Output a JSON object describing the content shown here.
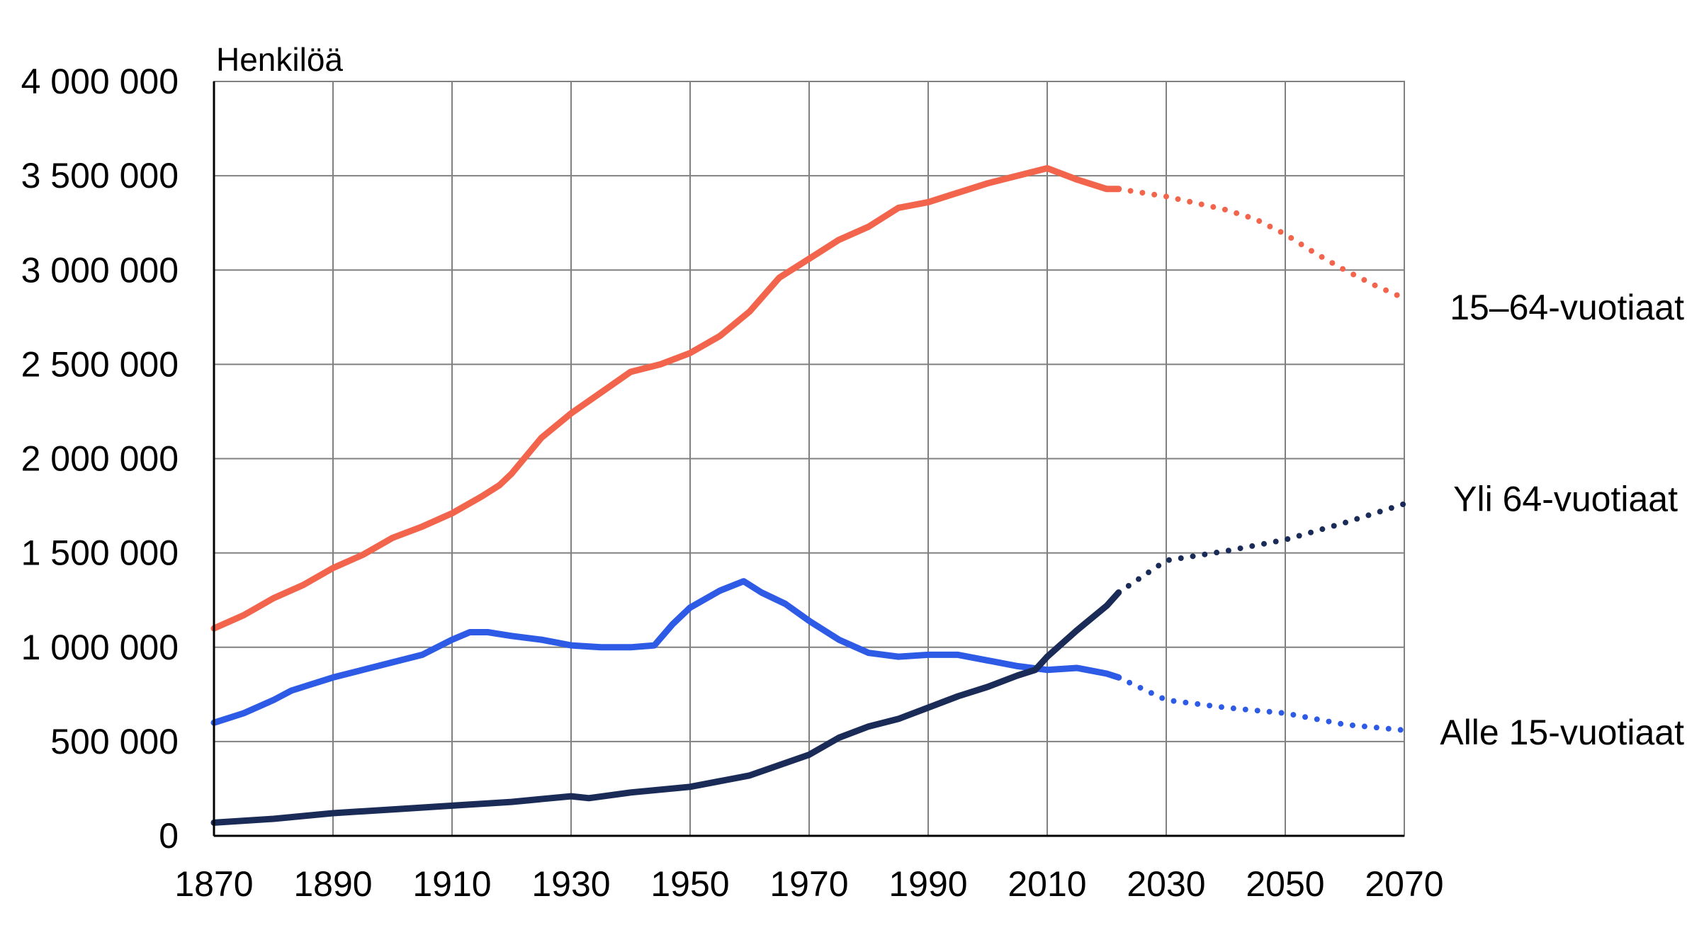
{
  "chart_data": {
    "type": "line",
    "title": "",
    "ylabel": "Henkilöä",
    "xlabel": "",
    "xlim": [
      1870,
      2070
    ],
    "ylim": [
      0,
      4000000
    ],
    "x_ticks": [
      1870,
      1890,
      1910,
      1930,
      1950,
      1970,
      1990,
      2010,
      2030,
      2050,
      2070
    ],
    "x_tick_labels": [
      "1870",
      "1890",
      "1910",
      "1930",
      "1950",
      "1970",
      "1990",
      "2010",
      "2030",
      "2050",
      "2070"
    ],
    "y_ticks": [
      0,
      500000,
      1000000,
      1500000,
      2000000,
      2500000,
      3000000,
      3500000,
      4000000
    ],
    "y_tick_labels": [
      "0",
      "500 000",
      "1 000 000",
      "1 500 000",
      "2 000 000",
      "2 500 000",
      "3 000 000",
      "3 500 000",
      "4 000 000"
    ],
    "grid": true,
    "legend": "labels at right end of each line",
    "series": [
      {
        "name": "15–64-vuotiaat",
        "color": "#F2654C",
        "observed": {
          "x": [
            1870,
            1875,
            1880,
            1885,
            1890,
            1895,
            1900,
            1905,
            1910,
            1915,
            1918,
            1920,
            1925,
            1930,
            1935,
            1940,
            1945,
            1950,
            1955,
            1960,
            1965,
            1970,
            1975,
            1980,
            1985,
            1990,
            1995,
            2000,
            2005,
            2010,
            2015,
            2020,
            2022
          ],
          "y": [
            1100000,
            1170000,
            1260000,
            1330000,
            1420000,
            1490000,
            1580000,
            1640000,
            1710000,
            1800000,
            1860000,
            1920000,
            2110000,
            2240000,
            2350000,
            2460000,
            2500000,
            2560000,
            2650000,
            2780000,
            2960000,
            3060000,
            3160000,
            3230000,
            3330000,
            3360000,
            3410000,
            3460000,
            3500000,
            3540000,
            3480000,
            3430000,
            3430000
          ]
        },
        "projection": {
          "x": [
            2022,
            2030,
            2040,
            2045,
            2050,
            2055,
            2060,
            2065,
            2070
          ],
          "y": [
            3430000,
            3390000,
            3320000,
            3270000,
            3190000,
            3090000,
            3000000,
            2920000,
            2850000
          ]
        }
      },
      {
        "name": "Alle 15-vuotiaat",
        "color": "#2E5BE6",
        "observed": {
          "x": [
            1870,
            1875,
            1880,
            1883,
            1886,
            1890,
            1895,
            1900,
            1905,
            1910,
            1913,
            1916,
            1920,
            1925,
            1930,
            1935,
            1940,
            1944,
            1947,
            1950,
            1955,
            1959,
            1962,
            1966,
            1970,
            1975,
            1980,
            1985,
            1990,
            1995,
            2000,
            2005,
            2010,
            2015,
            2020,
            2022
          ],
          "y": [
            600000,
            650000,
            720000,
            770000,
            800000,
            840000,
            880000,
            920000,
            960000,
            1040000,
            1080000,
            1080000,
            1060000,
            1040000,
            1010000,
            1000000,
            1000000,
            1010000,
            1120000,
            1210000,
            1300000,
            1350000,
            1290000,
            1230000,
            1140000,
            1040000,
            970000,
            950000,
            960000,
            960000,
            930000,
            900000,
            880000,
            890000,
            860000,
            840000
          ]
        },
        "projection": {
          "x": [
            2022,
            2030,
            2040,
            2050,
            2060,
            2070
          ],
          "y": [
            840000,
            720000,
            680000,
            650000,
            590000,
            560000
          ]
        }
      },
      {
        "name": "Yli 64-vuotiaat",
        "color": "#1B2B57",
        "observed": {
          "x": [
            1870,
            1880,
            1890,
            1900,
            1910,
            1920,
            1930,
            1933,
            1940,
            1950,
            1960,
            1970,
            1975,
            1980,
            1985,
            1990,
            1995,
            2000,
            2005,
            2008,
            2010,
            2015,
            2020,
            2022
          ],
          "y": [
            70000,
            90000,
            120000,
            140000,
            160000,
            180000,
            210000,
            200000,
            230000,
            260000,
            320000,
            430000,
            520000,
            580000,
            620000,
            680000,
            740000,
            790000,
            850000,
            880000,
            950000,
            1090000,
            1220000,
            1290000
          ]
        },
        "projection": {
          "x": [
            2022,
            2030,
            2040,
            2050,
            2060,
            2070
          ],
          "y": [
            1290000,
            1460000,
            1510000,
            1570000,
            1660000,
            1760000
          ]
        }
      }
    ]
  }
}
